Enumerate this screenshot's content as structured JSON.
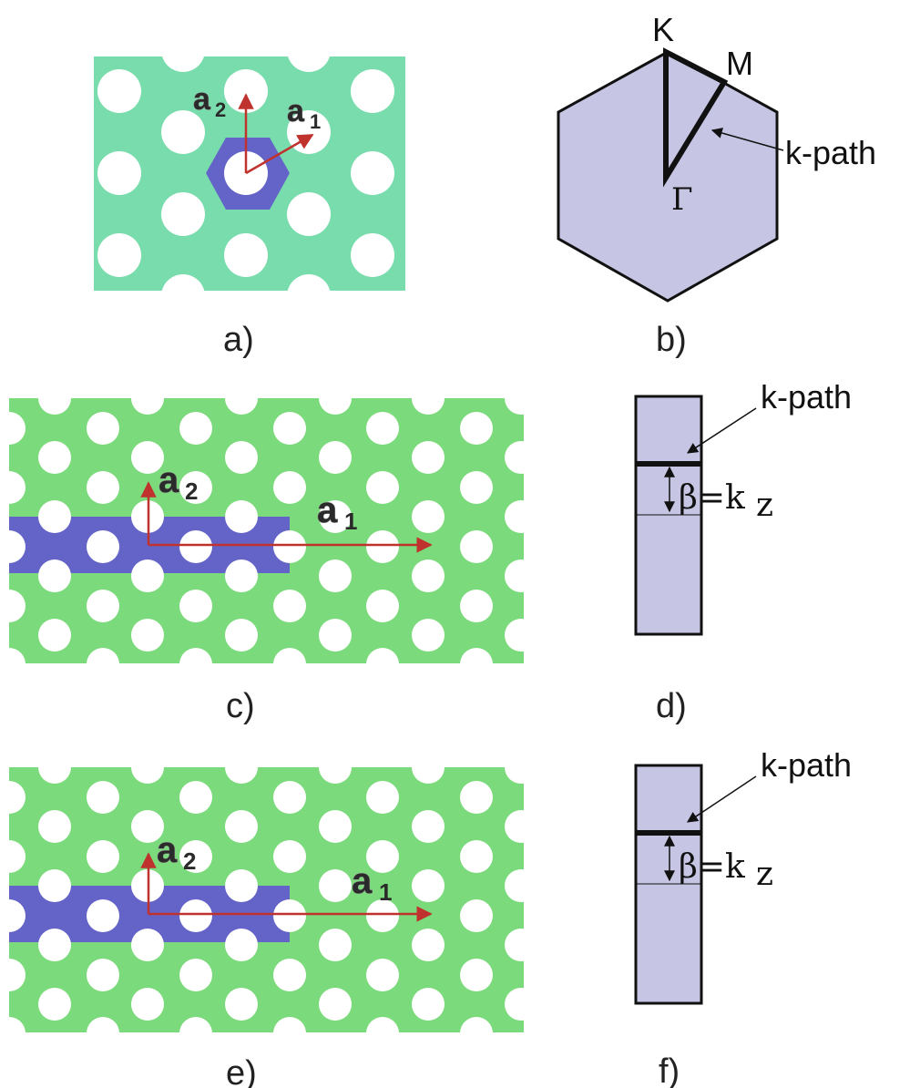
{
  "colors": {
    "hex_lattice": "#79dcac",
    "strip_lattice": "#7bda7b",
    "cell": "#6464c8",
    "brillouin": "#c6c6e4",
    "hole": "#ffffff",
    "arrow": "#c0322e",
    "outline": "#111111"
  },
  "panels": {
    "a": {
      "label": "a)",
      "vec1_main": "a",
      "vec1_sub": "1",
      "vec2_main": "a",
      "vec2_sub": "2"
    },
    "b": {
      "label": "b)",
      "K": "K",
      "M": "M",
      "Gamma": "Γ",
      "kpath": "k-path"
    },
    "c": {
      "label": "c)",
      "vec1_main": "a",
      "vec1_sub": "1",
      "vec2_main": "a",
      "vec2_sub": "2"
    },
    "d": {
      "label": "d)",
      "kpath": "k-path",
      "beta": "β=k",
      "beta_sub": "z"
    },
    "e": {
      "label": "e)",
      "vec1_main": "a",
      "vec1_sub": "1",
      "vec2_main": "a",
      "vec2_sub": "2"
    },
    "f": {
      "label": "f)",
      "kpath": "k-path",
      "beta": "β=k",
      "beta_sub": "z"
    }
  }
}
